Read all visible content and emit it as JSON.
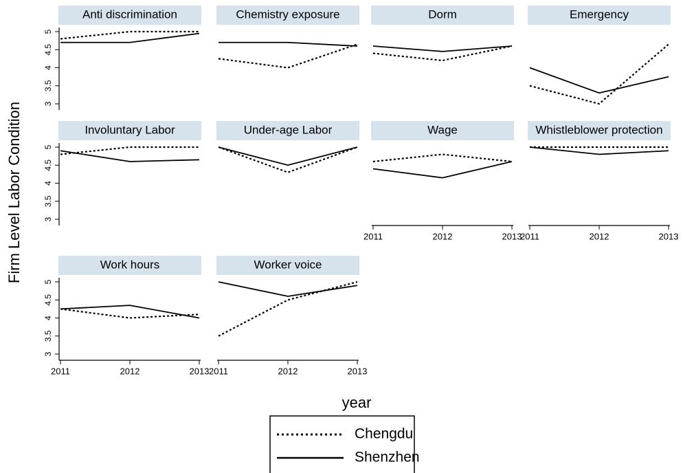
{
  "ylabel": "Firm Level Labor Condition",
  "xlabel": "year",
  "chart_data": [
    {
      "type": "line",
      "title": "Anti discrimination",
      "x": [
        2011,
        2012,
        2013
      ],
      "xlim": [
        2011,
        2013
      ],
      "ylim": [
        3,
        5
      ],
      "yticks": [
        3,
        3.5,
        4,
        4.5,
        5
      ],
      "series": [
        {
          "name": "Chengdu",
          "color": "#000000",
          "style": "dotted",
          "values": [
            4.8,
            5,
            5
          ]
        },
        {
          "name": "Shenzhen",
          "color": "#000000",
          "style": "solid",
          "values": [
            4.7,
            4.7,
            4.95
          ]
        }
      ]
    },
    {
      "type": "line",
      "title": "Chemistry exposure",
      "x": [
        2011,
        2012,
        2013
      ],
      "xlim": [
        2011,
        2013
      ],
      "ylim": [
        3,
        5
      ],
      "series": [
        {
          "name": "Chengdu",
          "color": "#000000",
          "style": "dotted",
          "values": [
            4.25,
            4,
            4.65
          ]
        },
        {
          "name": "Shenzhen",
          "color": "#000000",
          "style": "solid",
          "values": [
            4.7,
            4.7,
            4.6
          ]
        }
      ]
    },
    {
      "type": "line",
      "title": "Dorm",
      "x": [
        2011,
        2012,
        2013
      ],
      "xlim": [
        2011,
        2013
      ],
      "ylim": [
        3,
        5
      ],
      "series": [
        {
          "name": "Chengdu",
          "color": "#000000",
          "style": "dotted",
          "values": [
            4.4,
            4.2,
            4.6
          ]
        },
        {
          "name": "Shenzhen",
          "color": "#000000",
          "style": "solid",
          "values": [
            4.6,
            4.45,
            4.6
          ]
        }
      ]
    },
    {
      "type": "line",
      "title": "Emergency",
      "x": [
        2011,
        2012,
        2013
      ],
      "xlim": [
        2011,
        2013
      ],
      "ylim": [
        3,
        5
      ],
      "series": [
        {
          "name": "Chengdu",
          "color": "#000000",
          "style": "dotted",
          "values": [
            3.5,
            3,
            4.65
          ]
        },
        {
          "name": "Shenzhen",
          "color": "#000000",
          "style": "solid",
          "values": [
            4,
            3.3,
            3.75
          ]
        }
      ]
    },
    {
      "type": "line",
      "title": "Involuntary Labor",
      "x": [
        2011,
        2012,
        2013
      ],
      "xlim": [
        2011,
        2013
      ],
      "ylim": [
        3,
        5
      ],
      "yticks": [
        3,
        3.5,
        4,
        4.5,
        5
      ],
      "series": [
        {
          "name": "Chengdu",
          "color": "#000000",
          "style": "dotted",
          "values": [
            4.8,
            5,
            5
          ]
        },
        {
          "name": "Shenzhen",
          "color": "#000000",
          "style": "solid",
          "values": [
            4.9,
            4.6,
            4.65
          ]
        }
      ]
    },
    {
      "type": "line",
      "title": "Under-age Labor",
      "x": [
        2011,
        2012,
        2013
      ],
      "xlim": [
        2011,
        2013
      ],
      "ylim": [
        3,
        5
      ],
      "series": [
        {
          "name": "Chengdu",
          "color": "#000000",
          "style": "dotted",
          "values": [
            5,
            4.3,
            5
          ]
        },
        {
          "name": "Shenzhen",
          "color": "#000000",
          "style": "solid",
          "values": [
            5,
            4.5,
            5
          ]
        }
      ]
    },
    {
      "type": "line",
      "title": "Wage",
      "x": [
        2011,
        2012,
        2013
      ],
      "xlim": [
        2011,
        2013
      ],
      "ylim": [
        3,
        5
      ],
      "xticks": [
        2011,
        2012,
        2013
      ],
      "series": [
        {
          "name": "Chengdu",
          "color": "#000000",
          "style": "dotted",
          "values": [
            4.6,
            4.8,
            4.6
          ]
        },
        {
          "name": "Shenzhen",
          "color": "#000000",
          "style": "solid",
          "values": [
            4.4,
            4.15,
            4.6
          ]
        }
      ]
    },
    {
      "type": "line",
      "title": "Whistleblower protection",
      "x": [
        2011,
        2012,
        2013
      ],
      "xlim": [
        2011,
        2013
      ],
      "ylim": [
        3,
        5
      ],
      "xticks": [
        2011,
        2012,
        2013
      ],
      "series": [
        {
          "name": "Chengdu",
          "color": "#000000",
          "style": "dotted",
          "values": [
            5,
            5,
            5
          ]
        },
        {
          "name": "Shenzhen",
          "color": "#000000",
          "style": "solid",
          "values": [
            5,
            4.8,
            4.9
          ]
        }
      ]
    },
    {
      "type": "line",
      "title": "Work hours",
      "x": [
        2011,
        2012,
        2013
      ],
      "xlim": [
        2011,
        2013
      ],
      "ylim": [
        3,
        5
      ],
      "yticks": [
        3,
        3.5,
        4,
        4.5,
        5
      ],
      "xticks": [
        2011,
        2012,
        2013
      ],
      "series": [
        {
          "name": "Chengdu",
          "color": "#000000",
          "style": "dotted",
          "values": [
            4.25,
            4,
            4.1
          ]
        },
        {
          "name": "Shenzhen",
          "color": "#000000",
          "style": "solid",
          "values": [
            4.25,
            4.35,
            4
          ]
        }
      ]
    },
    {
      "type": "line",
      "title": "Worker voice",
      "x": [
        2011,
        2012,
        2013
      ],
      "xlim": [
        2011,
        2013
      ],
      "ylim": [
        3,
        5
      ],
      "xticks": [
        2011,
        2012,
        2013
      ],
      "series": [
        {
          "name": "Chengdu",
          "color": "#000000",
          "style": "dotted",
          "values": [
            3.5,
            4.5,
            5
          ]
        },
        {
          "name": "Shenzhen",
          "color": "#000000",
          "style": "solid",
          "values": [
            5,
            4.6,
            4.9
          ]
        }
      ]
    }
  ]
}
